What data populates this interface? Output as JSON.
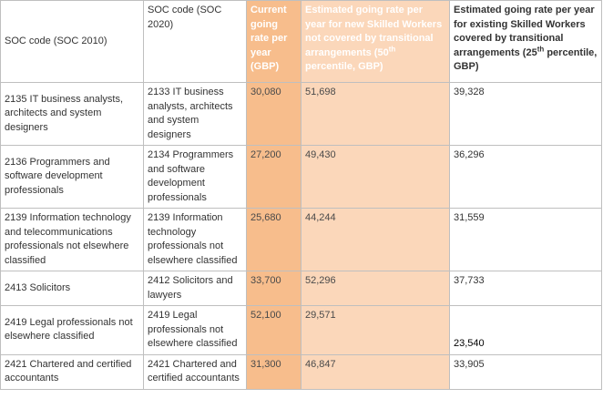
{
  "table": {
    "headers": {
      "soc2010": "SOC code (SOC 2010)",
      "soc2020": "SOC code (SOC 2020)",
      "current_rate": "Current going rate per year (GBP)",
      "new_workers_rate_before": "Estimated going rate per year for new Skilled Workers not covered by transitional arrangements (50",
      "new_workers_rate_sup": "th",
      "new_workers_rate_after": " percentile, GBP)",
      "existing_workers_rate_before": "Estimated going rate per year for existing Skilled Workers covered by transitional arrangements (25",
      "existing_workers_rate_sup": "th",
      "existing_workers_rate_after": " percentile, GBP)"
    },
    "rows": [
      {
        "soc2010": "2135 IT business analysts, architects and system designers",
        "soc2020": "2133 IT business analysts, architects and system designers",
        "current_rate": "30,080",
        "new_rate": "51,698",
        "existing_rate": "39,328"
      },
      {
        "soc2010": "2136 Programmers and software development professionals",
        "soc2020": "2134 Programmers and software development professionals",
        "current_rate": "27,200",
        "new_rate": "49,430",
        "existing_rate": "36,296"
      },
      {
        "soc2010": "2139 Information technology and telecommunications professionals not elsewhere classified",
        "soc2020": "2139 Information technology professionals not elsewhere classified",
        "current_rate": "25,680",
        "new_rate": "44,244",
        "existing_rate": "31,559"
      },
      {
        "soc2010": "2413 Solicitors",
        "soc2020": "2412 Solicitors and lawyers",
        "current_rate": "33,700",
        "new_rate": "52,296",
        "existing_rate": "37,733"
      },
      {
        "soc2010": "2419 Legal professionals not elsewhere classified",
        "soc2020": "2419 Legal professionals not elsewhere classified",
        "current_rate": "52,100",
        "new_rate": "29,571",
        "existing_rate": "23,540"
      },
      {
        "soc2010": "2421 Chartered and certified accountants",
        "soc2020": "2421 Chartered and certified accountants",
        "current_rate": "31,300",
        "new_rate": "46,847",
        "existing_rate": "33,905"
      }
    ]
  }
}
